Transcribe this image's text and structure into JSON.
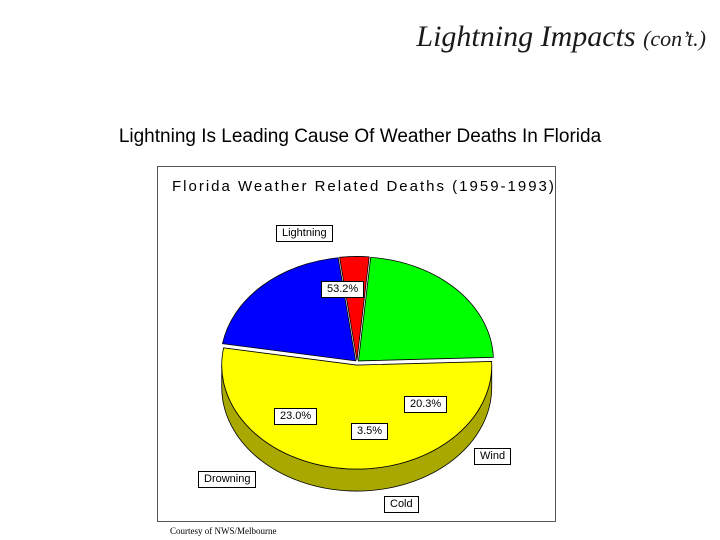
{
  "slide": {
    "title": "Lightning Impacts",
    "title_suffix": "(con’t.)",
    "subtitle": "Lightning Is Leading Cause Of Weather Deaths In Florida",
    "courtesy": "Courtesy of NWS/Melbourne"
  },
  "chart_data": {
    "type": "pie",
    "title": "Florida Weather Related Deaths (1959-1993)",
    "three_d": true,
    "slices": [
      {
        "name": "Lightning",
        "value": 53.2,
        "value_label": "53.2%",
        "color": "#ffff00",
        "side_color": "#a8a800"
      },
      {
        "name": "Wind",
        "value": 20.3,
        "value_label": "20.3%",
        "color": "#0000ff",
        "side_color": "#000080"
      },
      {
        "name": "Cold",
        "value": 3.5,
        "value_label": "3.5%",
        "color": "#ff0000",
        "side_color": "#800000"
      },
      {
        "name": "Drowning",
        "value": 23.0,
        "value_label": "23.0%",
        "color": "#00ff00",
        "side_color": "#008000"
      }
    ]
  }
}
